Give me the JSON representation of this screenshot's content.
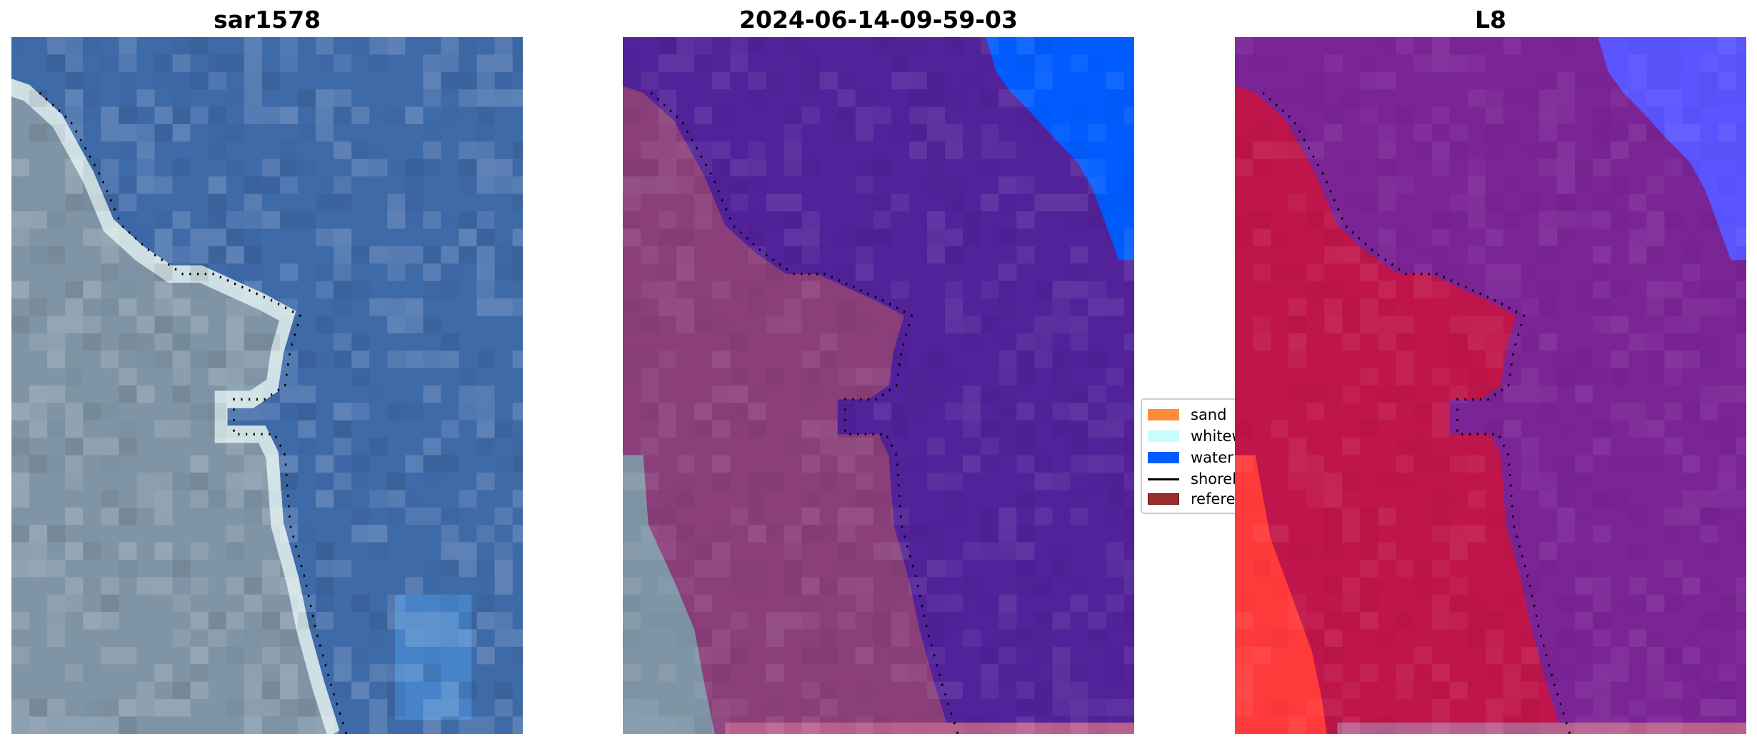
{
  "panels": [
    {
      "title": "sar1578",
      "view": "rgb"
    },
    {
      "title": "2024-06-14-09-59-03",
      "view": "classified-overlay"
    },
    {
      "title": "L8",
      "view": "classified-overlay"
    }
  ],
  "legend": {
    "items": [
      {
        "label": "sand",
        "color": "#ff8c3a",
        "icon": "patch"
      },
      {
        "label": "whitew",
        "color": "#c8fdfd",
        "icon": "patch"
      },
      {
        "label": "water",
        "color": "#005cff",
        "icon": "patch"
      },
      {
        "label": "shorel",
        "color": "#000000",
        "icon": "line"
      },
      {
        "label": "referer",
        "color": "#9b2d2d",
        "icon": "patch"
      }
    ]
  },
  "colors": {
    "rgb_water": "#3f6aa8",
    "rgb_land": "#7f95a6",
    "p2_water": "#52229a",
    "p2_land": "#8a3f7a",
    "p2_deep": "#005cff",
    "p3_water": "#7a2496",
    "p3_land": "#c0154a",
    "p3_deep": "#5a55ff",
    "p3_red": "#ff3a3a"
  }
}
